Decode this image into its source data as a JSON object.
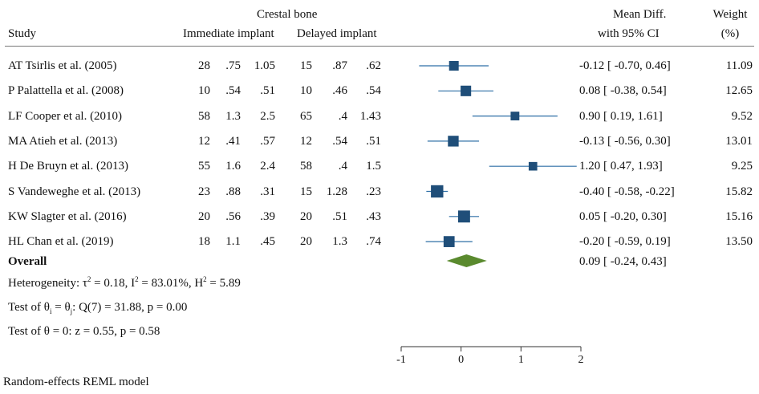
{
  "header": {
    "group_title": "Crestal bone",
    "study": "Study",
    "immediate": "Immediate implant",
    "delayed": "Delayed implant",
    "mean_diff_1": "Mean Diff.",
    "mean_diff_2": "with 95% CI",
    "weight_1": "Weight",
    "weight_2": "(%)"
  },
  "rows": [
    {
      "study": "AT Tsirlis et al. (2005)",
      "i_n": "28",
      "i_mean": ".75",
      "i_sd": "1.05",
      "d_n": "15",
      "d_mean": ".87",
      "d_sd": ".62",
      "ci_text": "-0.12 [  -0.70,   0.46]",
      "weight": "11.09"
    },
    {
      "study": "P Palattella et al. (2008)",
      "i_n": "10",
      "i_mean": ".54",
      "i_sd": ".51",
      "d_n": "10",
      "d_mean": ".46",
      "d_sd": ".54",
      "ci_text": "0.08 [  -0.38,   0.54]",
      "weight": "12.65"
    },
    {
      "study": "LF Cooper et al. (2010)",
      "i_n": "58",
      "i_mean": "1.3",
      "i_sd": "2.5",
      "d_n": "65",
      "d_mean": ".4",
      "d_sd": "1.43",
      "ci_text": "0.90 [   0.19,   1.61]",
      "weight": "9.52"
    },
    {
      "study": "MA Atieh et al. (2013)",
      "i_n": "12",
      "i_mean": ".41",
      "i_sd": ".57",
      "d_n": "12",
      "d_mean": ".54",
      "d_sd": ".51",
      "ci_text": "-0.13 [  -0.56,   0.30]",
      "weight": "13.01"
    },
    {
      "study": "H De Bruyn et al. (2013)",
      "i_n": "55",
      "i_mean": "1.6",
      "i_sd": "2.4",
      "d_n": "58",
      "d_mean": ".4",
      "d_sd": "1.5",
      "ci_text": "1.20 [   0.47,   1.93]",
      "weight": "9.25"
    },
    {
      "study": "S Vandeweghe et al. (2013)",
      "i_n": "23",
      "i_mean": ".88",
      "i_sd": ".31",
      "d_n": "15",
      "d_mean": "1.28",
      "d_sd": ".23",
      "ci_text": "-0.40 [  -0.58,  -0.22]",
      "weight": "15.82"
    },
    {
      "study": "KW Slagter et al. (2016)",
      "i_n": "20",
      "i_mean": ".56",
      "i_sd": ".39",
      "d_n": "20",
      "d_mean": ".51",
      "d_sd": ".43",
      "ci_text": "0.05 [  -0.20,   0.30]",
      "weight": "15.16"
    },
    {
      "study": "HL Chan et al. (2019)",
      "i_n": "18",
      "i_mean": "1.1",
      "i_sd": ".45",
      "d_n": "20",
      "d_mean": "1.3",
      "d_sd": ".74",
      "ci_text": "-0.20 [  -0.59,   0.19]",
      "weight": "13.50"
    }
  ],
  "overall": {
    "label": "Overall",
    "ci_text": "0.09 [  -0.24,   0.43]"
  },
  "stats": {
    "het_prefix": "Heterogeneity: τ",
    "het_tau_sup": "2",
    "het_mid1": " = 0.18, I",
    "het_i_sup": "2",
    "het_mid2": " = 83.01%, H",
    "het_h_sup": "2",
    "het_end": " = 5.89",
    "test1_prefix": "Test of θ",
    "test1_sub1": "i",
    "test1_mid": " = θ",
    "test1_sub2": "j",
    "test1_end": ": Q(7) = 31.88, p = 0.00",
    "test2": "Test of θ = 0: z = 0.55, p = 0.58"
  },
  "footer": "Random-effects REML model",
  "colors": {
    "marker": "#1f4e79",
    "ci_line": "#2e6fa6",
    "diamond": "#5a8a2e",
    "axis": "#333333"
  },
  "chart_data": {
    "type": "forest",
    "x_axis_ticks": [
      "-1",
      "0",
      "1",
      "2"
    ],
    "xlim": [
      -1,
      2
    ],
    "studies": [
      {
        "name": "AT Tsirlis et al. (2005)",
        "est": -0.12,
        "lo": -0.7,
        "hi": 0.46,
        "weight": 11.09
      },
      {
        "name": "P Palattella et al. (2008)",
        "est": 0.08,
        "lo": -0.38,
        "hi": 0.54,
        "weight": 12.65
      },
      {
        "name": "LF Cooper et al. (2010)",
        "est": 0.9,
        "lo": 0.19,
        "hi": 1.61,
        "weight": 9.52
      },
      {
        "name": "MA Atieh et al. (2013)",
        "est": -0.13,
        "lo": -0.56,
        "hi": 0.3,
        "weight": 13.01
      },
      {
        "name": "H De Bruyn et al. (2013)",
        "est": 1.2,
        "lo": 0.47,
        "hi": 1.93,
        "weight": 9.25
      },
      {
        "name": "S Vandeweghe et al. (2013)",
        "est": -0.4,
        "lo": -0.58,
        "hi": -0.22,
        "weight": 15.82
      },
      {
        "name": "KW Slagter et al. (2016)",
        "est": 0.05,
        "lo": -0.2,
        "hi": 0.3,
        "weight": 15.16
      },
      {
        "name": "HL Chan et al. (2019)",
        "est": -0.2,
        "lo": -0.59,
        "hi": 0.19,
        "weight": 13.5
      }
    ],
    "overall": {
      "est": 0.09,
      "lo": -0.24,
      "hi": 0.43
    }
  }
}
